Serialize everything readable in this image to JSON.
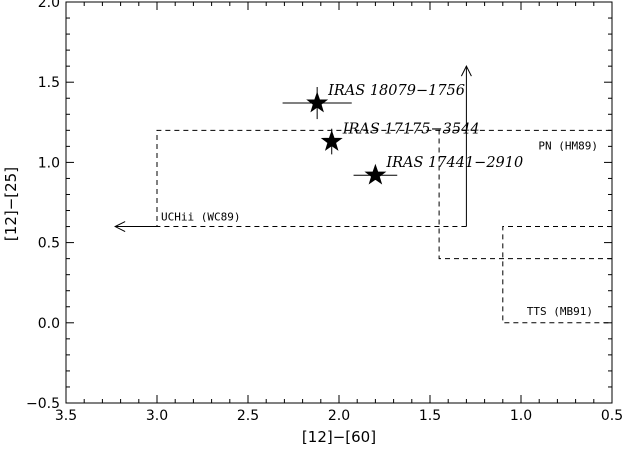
{
  "chart_data": {
    "type": "scatter",
    "title": "",
    "xlabel": "[12]−[60]",
    "ylabel": "[12]−[25]",
    "xlim": [
      3.5,
      0.5
    ],
    "ylim": [
      -0.5,
      2.0
    ],
    "x_reversed": true,
    "x_ticks": [
      3.5,
      3.0,
      2.5,
      2.0,
      1.5,
      1.0,
      0.5
    ],
    "x_tick_labels": [
      "3.5",
      "3.0",
      "2.5",
      "2.0",
      "1.5",
      "1.0",
      "0.5"
    ],
    "y_ticks": [
      -0.5,
      0.0,
      0.5,
      1.0,
      1.5,
      2.0
    ],
    "y_tick_labels": [
      "−0.5",
      "0.0",
      "0.5",
      "1.0",
      "1.5",
      "2.0"
    ],
    "grid": false,
    "legend": "none",
    "points": [
      {
        "label": "IRAS 18079−1756",
        "x": 2.12,
        "y": 1.37,
        "xerr": 0.19,
        "yerr": 0.1
      },
      {
        "label": "IRAS 17175−3544",
        "x": 2.04,
        "y": 1.13,
        "xerr": 0.03,
        "yerr": 0.08
      },
      {
        "label": "IRAS 17441−2910",
        "x": 1.8,
        "y": 0.92,
        "xerr": 0.12,
        "yerr": 0.03
      }
    ],
    "regions": [
      {
        "label": "UCHii (WC89)",
        "style": "dashed",
        "bounds": {
          "x": [
            3.0,
            1.3
          ],
          "y": [
            0.6,
            1.2
          ]
        },
        "arrow_to_x": 3.23
      },
      {
        "label": "PN (HM89)",
        "style": "dashed",
        "bounds": {
          "x": [
            1.45,
            0.5
          ],
          "y": [
            0.4,
            1.2
          ]
        },
        "arrow_to_y": 1.6
      },
      {
        "label": "TTS (MB91)",
        "style": "dashed",
        "bounds": {
          "x": [
            1.1,
            0.5
          ],
          "y": [
            0.0,
            0.6
          ]
        }
      }
    ]
  }
}
